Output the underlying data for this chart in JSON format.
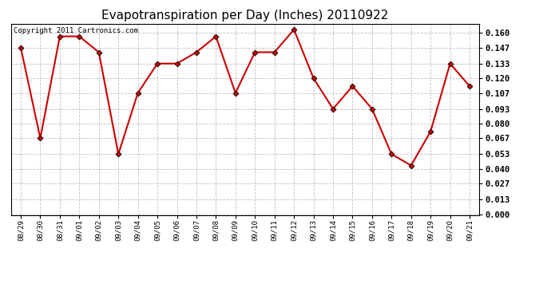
{
  "title": "Evapotranspiration per Day (Inches) 20110922",
  "copyright": "Copyright 2011 Cartronics.com",
  "x_labels": [
    "08/29",
    "08/30",
    "08/31",
    "09/01",
    "09/02",
    "09/03",
    "09/04",
    "09/05",
    "09/06",
    "09/07",
    "09/08",
    "09/09",
    "09/10",
    "09/11",
    "09/12",
    "09/13",
    "09/14",
    "09/15",
    "09/16",
    "09/17",
    "09/18",
    "09/19",
    "09/20",
    "09/21"
  ],
  "y_values": [
    0.147,
    0.067,
    0.157,
    0.157,
    0.143,
    0.053,
    0.107,
    0.133,
    0.133,
    0.143,
    0.157,
    0.107,
    0.143,
    0.143,
    0.163,
    0.12,
    0.093,
    0.113,
    0.093,
    0.053,
    0.043,
    0.073,
    0.133,
    0.113
  ],
  "y_ticks": [
    0.0,
    0.013,
    0.027,
    0.04,
    0.053,
    0.067,
    0.08,
    0.093,
    0.107,
    0.12,
    0.133,
    0.147,
    0.16
  ],
  "ylim": [
    -0.001,
    0.168
  ],
  "line_color": "#cc0000",
  "marker_color": "#000000",
  "bg_color": "#ffffff",
  "grid_color": "#c0c0c0",
  "title_fontsize": 11,
  "copyright_fontsize": 6.5,
  "ytick_fontsize": 7.5,
  "xtick_fontsize": 6.5
}
